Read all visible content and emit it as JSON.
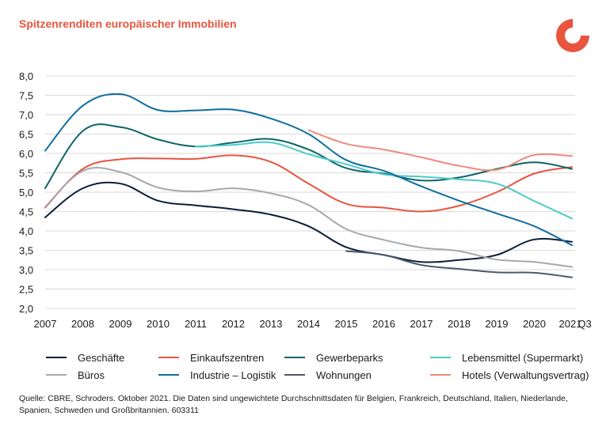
{
  "title": "Spitzenrenditen europäischer Immobilien",
  "source": "Quelle: CBRE, Schroders. Oktober 2021. Die Daten sind ungewichtete Durchschnittsdaten für Belgien, Frankreich, Deutschland, Italien, Niederlande, Spanien, Schweden und Großbritannien. 603311",
  "logo_colors": [
    "#e8553e",
    "#ffffff"
  ],
  "chart_data": {
    "type": "line",
    "title": "Spitzenrenditen europäischer Immobilien",
    "xlabel": "",
    "ylabel": "",
    "x": [
      "2007",
      "2008",
      "2009",
      "2010",
      "2011",
      "2012",
      "2013",
      "2014",
      "2015",
      "2016",
      "2017",
      "2018",
      "2019",
      "2020",
      "2021 Q3"
    ],
    "x_tick_labels": [
      "2007",
      "2008",
      "2009",
      "2010",
      "2011",
      "2012",
      "2013",
      "2014",
      "2015",
      "2016",
      "2017",
      "2018",
      "2019",
      "2020",
      "2021",
      "Q3"
    ],
    "ylim": [
      2.0,
      8.0
    ],
    "yticks": [
      "2,0",
      "2,5",
      "3,0",
      "3,5",
      "4,0",
      "4,5",
      "5,0",
      "5,5",
      "6,0",
      "6,5",
      "7,0",
      "7,5",
      "8,0"
    ],
    "grid": "horizontal",
    "legend_position": "bottom",
    "series": [
      {
        "name": "Geschäfte",
        "color": "#0b1f3a",
        "values": [
          4.35,
          5.1,
          5.22,
          4.78,
          4.66,
          4.56,
          4.42,
          4.12,
          3.58,
          3.38,
          3.2,
          3.25,
          3.38,
          3.78,
          3.72
        ]
      },
      {
        "name": "Einkaufszentren",
        "color": "#e8553e",
        "values": [
          4.6,
          5.6,
          5.85,
          5.87,
          5.86,
          5.95,
          5.78,
          5.22,
          4.7,
          4.6,
          4.5,
          4.65,
          5.0,
          5.48,
          5.65
        ]
      },
      {
        "name": "Gewerbeparks",
        "color": "#0e6568",
        "values": [
          5.1,
          6.58,
          6.68,
          6.36,
          6.18,
          6.28,
          6.37,
          6.1,
          5.62,
          5.48,
          5.3,
          5.38,
          5.6,
          5.77,
          5.6
        ]
      },
      {
        "name": "Lebensmittel (Supermarkt)",
        "color": "#4ccbc8",
        "values": [
          null,
          null,
          null,
          null,
          6.18,
          6.22,
          6.28,
          5.98,
          5.72,
          5.46,
          5.4,
          5.33,
          5.22,
          4.77,
          4.32
        ]
      },
      {
        "name": "Büros",
        "color": "#a6a8ab",
        "values": [
          4.62,
          5.55,
          5.52,
          5.12,
          5.02,
          5.1,
          4.97,
          4.67,
          4.05,
          3.77,
          3.57,
          3.48,
          3.26,
          3.2,
          3.07
        ]
      },
      {
        "name": "Industrie – Logistik",
        "color": "#0e6e9e",
        "values": [
          6.07,
          7.23,
          7.53,
          7.12,
          7.11,
          7.13,
          6.9,
          6.5,
          5.83,
          5.55,
          5.15,
          4.78,
          4.45,
          4.12,
          3.63
        ]
      },
      {
        "name": "Wohnungen",
        "color": "#4a5a6b",
        "values": [
          null,
          null,
          null,
          null,
          null,
          null,
          null,
          null,
          3.48,
          3.38,
          3.12,
          3.02,
          2.93,
          2.92,
          2.8
        ]
      },
      {
        "name": "Hotels (Verwaltungsvertrag)",
        "color": "#f08a7c",
        "values": [
          null,
          null,
          null,
          null,
          null,
          null,
          null,
          6.6,
          6.25,
          6.1,
          5.9,
          5.68,
          5.58,
          5.96,
          5.93
        ]
      }
    ]
  }
}
